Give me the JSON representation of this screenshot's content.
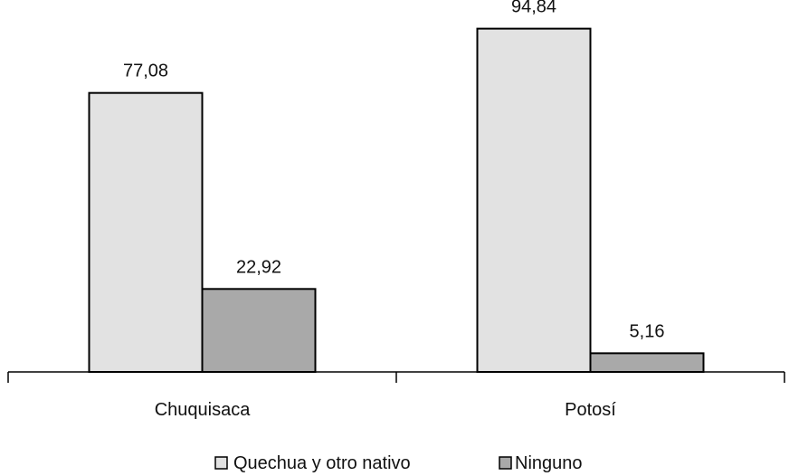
{
  "chart_data": {
    "type": "bar",
    "categories": [
      "Chuquisaca",
      "Potosí"
    ],
    "series": [
      {
        "name": "Quechua y otro nativo",
        "values": [
          77.08,
          94.84
        ],
        "labels": [
          "77,08",
          "94,84"
        ],
        "color": "#e2e2e2"
      },
      {
        "name": "Ninguno",
        "values": [
          22.92,
          5.16
        ],
        "labels": [
          "22,92",
          "5,16"
        ],
        "color": "#a9a9a9"
      }
    ],
    "ylim": [
      0,
      100
    ],
    "grid": false,
    "legend_position": "bottom",
    "stroke_color": "#000000"
  }
}
